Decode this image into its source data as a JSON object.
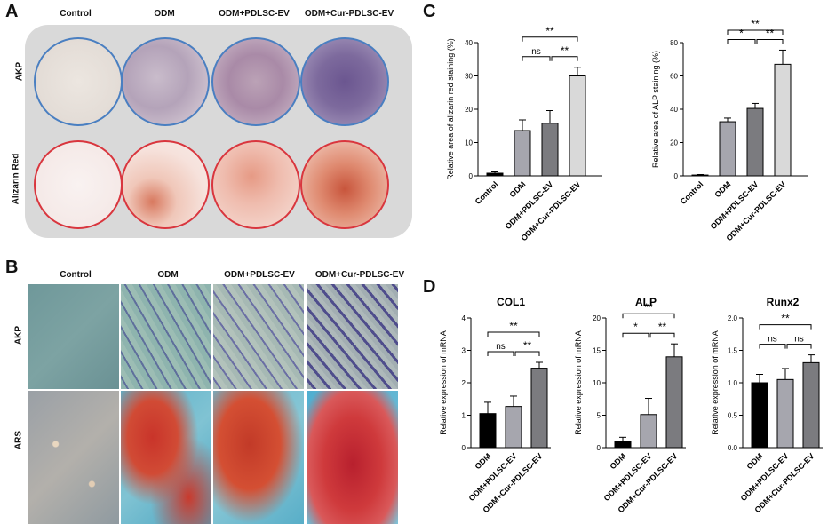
{
  "panels": {
    "A": {
      "letter": "A",
      "columns": [
        "Control",
        "ODM",
        "ODM+PDLSC-EV",
        "ODM+Cur-PDLSC-EV"
      ],
      "rows": [
        "AKP",
        "Alizarin Red"
      ]
    },
    "B": {
      "letter": "B",
      "columns": [
        "Control",
        "ODM",
        "ODM+PDLSC-EV",
        "ODM+Cur-PDLSC-EV"
      ],
      "rows": [
        "AKP",
        "ARS"
      ]
    },
    "C": {
      "letter": "C"
    },
    "D": {
      "letter": "D"
    }
  },
  "colors": {
    "control": "#000000",
    "odm": "#a6a6ae",
    "pdlsc": "#7b7b7f",
    "cur": "#d9d9d9",
    "well_blue": "#4a7fc1",
    "well_red": "#d9363e",
    "d_pdlsc": "#a6a6ae",
    "d_cur": "#7b7b7f"
  },
  "chart_data": [
    {
      "id": "C1",
      "type": "bar",
      "title": "",
      "ylabel": "Relative area of alizarin red staining (%)",
      "ylim": [
        0,
        40
      ],
      "yticks": [
        0,
        10,
        20,
        30,
        40
      ],
      "categories": [
        "Control",
        "ODM",
        "ODM+PDLSC-EV",
        "ODM+Cur-PDLSC-EV"
      ],
      "values": [
        0.8,
        13.6,
        15.8,
        30.0
      ],
      "errors": [
        0.4,
        3.2,
        3.8,
        2.6
      ],
      "significance": [
        {
          "from": 1,
          "to": 3,
          "label": "**"
        },
        {
          "from": 1,
          "to": 2,
          "label": "ns"
        },
        {
          "from": 2,
          "to": 3,
          "label": "**"
        }
      ]
    },
    {
      "id": "C2",
      "type": "bar",
      "title": "",
      "ylabel": "Relative area of ALP staining (%)",
      "ylim": [
        0,
        80
      ],
      "yticks": [
        0,
        20,
        40,
        60,
        80
      ],
      "categories": [
        "Control",
        "ODM",
        "ODM+PDLSC-EV",
        "ODM+Cur-PDLSC-EV"
      ],
      "values": [
        0.5,
        32.5,
        40.5,
        67.0
      ],
      "errors": [
        0.3,
        2.2,
        3.0,
        8.5
      ],
      "significance": [
        {
          "from": 1,
          "to": 3,
          "label": "**"
        },
        {
          "from": 1,
          "to": 2,
          "label": "*"
        },
        {
          "from": 2,
          "to": 3,
          "label": "**"
        }
      ]
    },
    {
      "id": "D1",
      "type": "bar",
      "title": "COL1",
      "ylabel": "Relative expression of mRNA",
      "ylim": [
        0,
        4
      ],
      "yticks": [
        0,
        1,
        2,
        3,
        4
      ],
      "categories": [
        "ODM",
        "ODM+PDLSC-EV",
        "ODM+Cur-PDLSC-EV"
      ],
      "values": [
        1.05,
        1.27,
        2.45
      ],
      "errors": [
        0.35,
        0.32,
        0.18
      ],
      "significance": [
        {
          "from": 0,
          "to": 2,
          "label": "**"
        },
        {
          "from": 0,
          "to": 1,
          "label": "ns"
        },
        {
          "from": 1,
          "to": 2,
          "label": "**"
        }
      ]
    },
    {
      "id": "D2",
      "type": "bar",
      "title": "ALP",
      "ylabel": "Relative expression of mRNA",
      "ylim": [
        0,
        20
      ],
      "yticks": [
        0,
        5,
        10,
        15,
        20
      ],
      "categories": [
        "ODM",
        "ODM+PDLSC-EV",
        "ODM+Cur-PDLSC-EV"
      ],
      "values": [
        1.0,
        5.1,
        14.0
      ],
      "errors": [
        0.6,
        2.5,
        2.0
      ],
      "significance": [
        {
          "from": 0,
          "to": 2,
          "label": "**"
        },
        {
          "from": 0,
          "to": 1,
          "label": "*"
        },
        {
          "from": 1,
          "to": 2,
          "label": "**"
        }
      ]
    },
    {
      "id": "D3",
      "type": "bar",
      "title": "Runx2",
      "ylabel": "Relative expression of mRNA",
      "ylim": [
        0,
        2.0
      ],
      "yticks": [
        "0.0",
        "0.5",
        "1.0",
        "1.5",
        "2.0"
      ],
      "categories": [
        "ODM",
        "ODM+PDLSC-EV",
        "ODM+Cur-PDLSC-EV"
      ],
      "values": [
        1.0,
        1.05,
        1.31
      ],
      "errors": [
        0.13,
        0.17,
        0.12
      ],
      "significance": [
        {
          "from": 0,
          "to": 2,
          "label": "**"
        },
        {
          "from": 0,
          "to": 1,
          "label": "ns"
        },
        {
          "from": 1,
          "to": 2,
          "label": "ns"
        }
      ]
    }
  ]
}
